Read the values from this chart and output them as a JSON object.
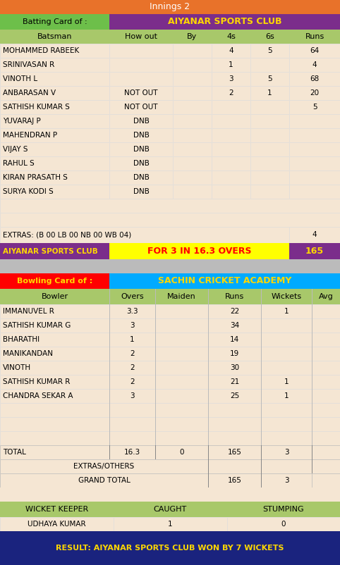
{
  "innings_title": "Innings 2",
  "innings_title_bg": "#E8722A",
  "innings_title_color": "#FFFFFF",
  "batting_label": "Batting Card of :",
  "batting_label_bg": "#6DBF4A",
  "batting_label_color": "#000000",
  "batting_team": "AIYANAR SPORTS CLUB",
  "batting_team_bg": "#7B2D8B",
  "batting_team_color": "#FFD700",
  "bat_header": [
    "Batsman",
    "How out",
    "By",
    "4s",
    "6s",
    "Runs"
  ],
  "bat_header_bg": "#A8C86A",
  "bat_header_color": "#000000",
  "batsmen": [
    [
      "MOHAMMED RABEEK",
      "",
      "",
      "4",
      "5",
      "64"
    ],
    [
      "SRINIVASAN R",
      "",
      "",
      "1",
      "",
      "4"
    ],
    [
      "VINOTH L",
      "",
      "",
      "3",
      "5",
      "68"
    ],
    [
      "ANBARASAN V",
      "NOT OUT",
      "",
      "2",
      "1",
      "20"
    ],
    [
      "SATHISH KUMAR S",
      "NOT OUT",
      "",
      "",
      "",
      "5"
    ],
    [
      "YUVARAJ P",
      "DNB",
      "",
      "",
      "",
      ""
    ],
    [
      "MAHENDRAN P",
      "DNB",
      "",
      "",
      "",
      ""
    ],
    [
      "VIJAY S",
      "DNB",
      "",
      "",
      "",
      ""
    ],
    [
      "RAHUL S",
      "DNB",
      "",
      "",
      "",
      ""
    ],
    [
      "KIRAN PRASATH S",
      "DNB",
      "",
      "",
      "",
      ""
    ],
    [
      "SURYA KODI S",
      "DNB",
      "",
      "",
      "",
      ""
    ]
  ],
  "bat_row_bg": "#F5E6D3",
  "bat_row_color": "#000000",
  "extras_text": "EXTRAS: (B 00 LB 00 NB 00 WB 04)",
  "extras_value": "4",
  "innings_summary_team": "AIYANAR SPORTS CLUB",
  "innings_summary_team_bg": "#7B2D8B",
  "innings_summary_team_color": "#FFD700",
  "innings_summary_mid": "FOR 3 IN 16.3 OVERS",
  "innings_summary_mid_bg": "#FFFF00",
  "innings_summary_mid_color": "#FF0000",
  "innings_summary_score": "165",
  "innings_summary_score_bg": "#7B2D8B",
  "innings_summary_score_color": "#FFD700",
  "gap_bg": "#BBBBBB",
  "bowling_label": "Bowling Card of :",
  "bowling_label_bg": "#FF0000",
  "bowling_label_color": "#FFD700",
  "bowling_team": "SACHIN CRICKET ACADEMY",
  "bowling_team_bg": "#00AAFF",
  "bowling_team_color": "#FFD700",
  "bowl_header": [
    "Bowler",
    "Overs",
    "Maiden",
    "Runs",
    "Wickets",
    "Avg"
  ],
  "bowl_header_bg": "#A8C86A",
  "bowl_header_color": "#000000",
  "bowlers": [
    [
      "IMMANUVEL R",
      "3.3",
      "",
      "22",
      "1",
      ""
    ],
    [
      "SATHISH KUMAR G",
      "3",
      "",
      "34",
      "",
      ""
    ],
    [
      "BHARATHI",
      "1",
      "",
      "14",
      "",
      ""
    ],
    [
      "MANIKANDAN",
      "2",
      "",
      "19",
      "",
      ""
    ],
    [
      "VINOTH",
      "2",
      "",
      "30",
      "",
      ""
    ],
    [
      "SATHISH KUMAR R",
      "2",
      "",
      "21",
      "1",
      ""
    ],
    [
      "CHANDRA SEKAR A",
      "3",
      "",
      "25",
      "1",
      ""
    ]
  ],
  "bowl_row_bg": "#F5E6D3",
  "bowl_row_color": "#000000",
  "total_row": [
    "TOTAL",
    "16.3",
    "0",
    "165",
    "3",
    ""
  ],
  "extras_others_label": "EXTRAS/OTHERS",
  "grand_total_label": "GRAND TOTAL",
  "grand_total_runs": "165",
  "grand_total_wickets": "3",
  "wk_header": [
    "WICKET KEEPER",
    "CAUGHT",
    "STUMPING"
  ],
  "wk_header_bg": "#A8C86A",
  "wk_header_color": "#000000",
  "wk_data": [
    "UDHAYA KUMAR",
    "1",
    "0"
  ],
  "result_text": "RESULT: AIYANAR SPORTS CLUB WON BY 7 WICKETS",
  "result_bg": "#1A237E",
  "result_color": "#FFD700"
}
